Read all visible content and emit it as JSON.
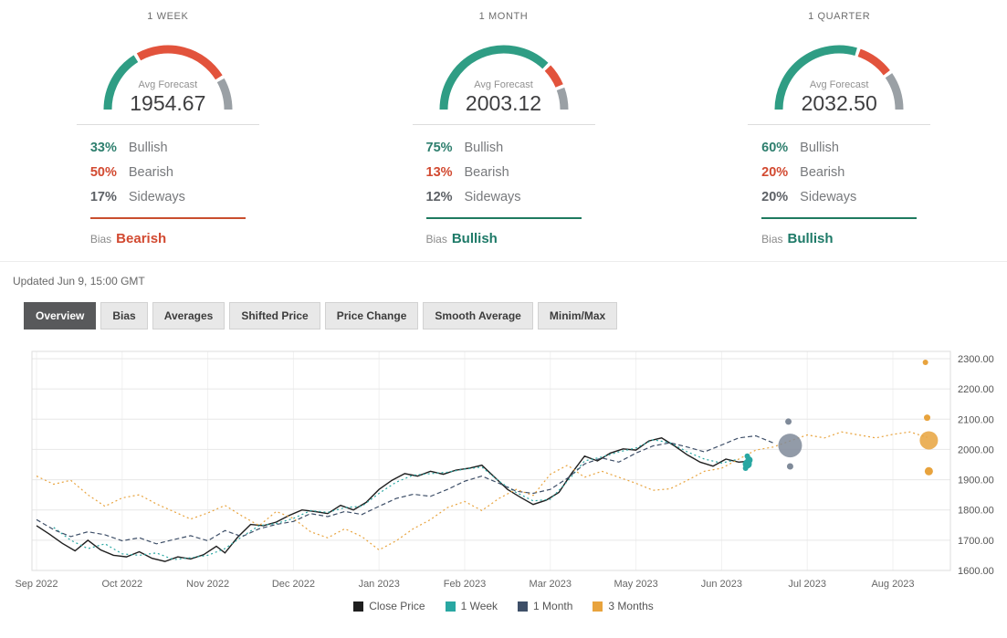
{
  "panels": [
    {
      "period": "1 WEEK",
      "avg_label": "Avg Forecast",
      "avg_value": "1954.67",
      "gauge": {
        "bullish": 33,
        "bearish": 50,
        "sideways": 17
      },
      "rows": [
        {
          "pct": "33%",
          "label": "Bullish"
        },
        {
          "pct": "50%",
          "label": "Bearish"
        },
        {
          "pct": "17%",
          "label": "Sideways"
        }
      ],
      "bias_label": "Bias",
      "bias": "Bearish",
      "bias_type": "bearish"
    },
    {
      "period": "1 MONTH",
      "avg_label": "Avg Forecast",
      "avg_value": "2003.12",
      "gauge": {
        "bullish": 75,
        "bearish": 13,
        "sideways": 12
      },
      "rows": [
        {
          "pct": "75%",
          "label": "Bullish"
        },
        {
          "pct": "13%",
          "label": "Bearish"
        },
        {
          "pct": "12%",
          "label": "Sideways"
        }
      ],
      "bias_label": "Bias",
      "bias": "Bullish",
      "bias_type": "bullish"
    },
    {
      "period": "1 QUARTER",
      "avg_label": "Avg Forecast",
      "avg_value": "2032.50",
      "gauge": {
        "bullish": 60,
        "bearish": 20,
        "sideways": 20
      },
      "rows": [
        {
          "pct": "60%",
          "label": "Bullish"
        },
        {
          "pct": "20%",
          "label": "Bearish"
        },
        {
          "pct": "20%",
          "label": "Sideways"
        }
      ],
      "bias_label": "Bias",
      "bias": "Bullish",
      "bias_type": "bullish"
    }
  ],
  "colors": {
    "gauge_bullish": "#2f9d84",
    "gauge_bearish": "#e2533c",
    "gauge_sideways": "#9aa0a5",
    "bias_bullish": "#1e7a68",
    "bias_bearish": "#d24a31"
  },
  "updated": "Updated Jun 9, 15:00 GMT",
  "tabs": {
    "items": [
      {
        "label": "Overview",
        "active": true
      },
      {
        "label": "Bias",
        "active": false
      },
      {
        "label": "Averages",
        "active": false
      },
      {
        "label": "Shifted Price",
        "active": false
      },
      {
        "label": "Price Change",
        "active": false
      },
      {
        "label": "Smooth Average",
        "active": false
      },
      {
        "label": "Minim/Max",
        "active": false
      }
    ]
  },
  "chart_data": {
    "type": "line",
    "title": "",
    "x_labels": [
      "Sep 2022",
      "Oct 2022",
      "Nov 2022",
      "Dec 2022",
      "Jan 2023",
      "Feb 2023",
      "Mar 2023",
      "May 2023",
      "Jun 2023",
      "Jul 2023",
      "Aug 2023"
    ],
    "ylim": [
      1600,
      2300
    ],
    "y_ticks": [
      "1600.00",
      "1700.00",
      "1800.00",
      "1900.00",
      "2000.00",
      "2100.00",
      "2200.00",
      "2300.00"
    ],
    "grid": true,
    "legend_position": "bottom",
    "series": [
      {
        "name": "Close Price",
        "color": "#1f1f1f",
        "dash": "",
        "points": [
          [
            0,
            1748
          ],
          [
            0.15,
            1720
          ],
          [
            0.3,
            1690
          ],
          [
            0.45,
            1665
          ],
          [
            0.6,
            1700
          ],
          [
            0.75,
            1668
          ],
          [
            0.9,
            1650
          ],
          [
            1.05,
            1645
          ],
          [
            1.2,
            1662
          ],
          [
            1.35,
            1640
          ],
          [
            1.5,
            1630
          ],
          [
            1.65,
            1645
          ],
          [
            1.8,
            1638
          ],
          [
            1.95,
            1652
          ],
          [
            2.1,
            1680
          ],
          [
            2.2,
            1658
          ],
          [
            2.35,
            1710
          ],
          [
            2.5,
            1752
          ],
          [
            2.65,
            1748
          ],
          [
            2.8,
            1760
          ],
          [
            2.95,
            1782
          ],
          [
            3.1,
            1800
          ],
          [
            3.25,
            1795
          ],
          [
            3.4,
            1788
          ],
          [
            3.55,
            1815
          ],
          [
            3.7,
            1800
          ],
          [
            3.85,
            1825
          ],
          [
            4.0,
            1868
          ],
          [
            4.15,
            1898
          ],
          [
            4.3,
            1920
          ],
          [
            4.45,
            1912
          ],
          [
            4.6,
            1928
          ],
          [
            4.75,
            1918
          ],
          [
            4.9,
            1932
          ],
          [
            5.05,
            1938
          ],
          [
            5.2,
            1948
          ],
          [
            5.35,
            1908
          ],
          [
            5.5,
            1868
          ],
          [
            5.65,
            1842
          ],
          [
            5.8,
            1818
          ],
          [
            5.95,
            1832
          ],
          [
            6.1,
            1858
          ],
          [
            6.25,
            1922
          ],
          [
            6.4,
            1978
          ],
          [
            6.55,
            1962
          ],
          [
            6.7,
            1988
          ],
          [
            6.85,
            2002
          ],
          [
            7.0,
            1998
          ],
          [
            7.15,
            2028
          ],
          [
            7.3,
            2038
          ],
          [
            7.45,
            2012
          ],
          [
            7.6,
            1982
          ],
          [
            7.75,
            1958
          ],
          [
            7.9,
            1945
          ],
          [
            8.05,
            1968
          ],
          [
            8.2,
            1958
          ],
          [
            8.35,
            1962
          ]
        ]
      },
      {
        "name": "1 Week",
        "color": "#29a7a2",
        "dash": "2 3",
        "points": [
          [
            0.2,
            1742
          ],
          [
            0.4,
            1700
          ],
          [
            0.6,
            1672
          ],
          [
            0.8,
            1688
          ],
          [
            1.0,
            1655
          ],
          [
            1.2,
            1650
          ],
          [
            1.4,
            1658
          ],
          [
            1.6,
            1636
          ],
          [
            1.8,
            1642
          ],
          [
            2.0,
            1650
          ],
          [
            2.2,
            1672
          ],
          [
            2.4,
            1712
          ],
          [
            2.6,
            1748
          ],
          [
            2.8,
            1755
          ],
          [
            3.0,
            1772
          ],
          [
            3.2,
            1798
          ],
          [
            3.4,
            1792
          ],
          [
            3.6,
            1808
          ],
          [
            3.8,
            1812
          ],
          [
            4.0,
            1855
          ],
          [
            4.2,
            1892
          ],
          [
            4.4,
            1915
          ],
          [
            4.6,
            1920
          ],
          [
            4.8,
            1925
          ],
          [
            5.0,
            1935
          ],
          [
            5.2,
            1942
          ],
          [
            5.4,
            1895
          ],
          [
            5.6,
            1858
          ],
          [
            5.8,
            1830
          ],
          [
            6.0,
            1835
          ],
          [
            6.2,
            1895
          ],
          [
            6.4,
            1962
          ],
          [
            6.6,
            1975
          ],
          [
            6.8,
            1992
          ],
          [
            7.0,
            2005
          ],
          [
            7.2,
            2032
          ],
          [
            7.4,
            2022
          ],
          [
            7.6,
            1992
          ],
          [
            7.8,
            1968
          ],
          [
            8.0,
            1955
          ],
          [
            8.2,
            1968
          ]
        ]
      },
      {
        "name": "1 Month",
        "color": "#3e4f68",
        "dash": "5 3",
        "points": [
          [
            0,
            1768
          ],
          [
            0.2,
            1735
          ],
          [
            0.4,
            1712
          ],
          [
            0.6,
            1728
          ],
          [
            0.8,
            1718
          ],
          [
            1.0,
            1698
          ],
          [
            1.2,
            1708
          ],
          [
            1.4,
            1688
          ],
          [
            1.6,
            1702
          ],
          [
            1.8,
            1715
          ],
          [
            2.0,
            1698
          ],
          [
            2.2,
            1732
          ],
          [
            2.4,
            1712
          ],
          [
            2.6,
            1738
          ],
          [
            2.8,
            1752
          ],
          [
            3.0,
            1762
          ],
          [
            3.2,
            1788
          ],
          [
            3.4,
            1778
          ],
          [
            3.6,
            1795
          ],
          [
            3.8,
            1785
          ],
          [
            4.0,
            1812
          ],
          [
            4.2,
            1838
          ],
          [
            4.4,
            1852
          ],
          [
            4.6,
            1845
          ],
          [
            4.8,
            1868
          ],
          [
            5.0,
            1895
          ],
          [
            5.2,
            1912
          ],
          [
            5.4,
            1888
          ],
          [
            5.6,
            1862
          ],
          [
            5.8,
            1855
          ],
          [
            6.0,
            1868
          ],
          [
            6.2,
            1905
          ],
          [
            6.4,
            1952
          ],
          [
            6.6,
            1972
          ],
          [
            6.8,
            1958
          ],
          [
            7.0,
            1988
          ],
          [
            7.2,
            2012
          ],
          [
            7.4,
            2022
          ],
          [
            7.6,
            2008
          ],
          [
            7.8,
            1992
          ],
          [
            8.0,
            2015
          ],
          [
            8.2,
            2038
          ],
          [
            8.4,
            2045
          ],
          [
            8.6,
            2022
          ]
        ]
      },
      {
        "name": "3 Months",
        "color": "#e8a33d",
        "dash": "2 3",
        "points": [
          [
            0,
            1912
          ],
          [
            0.2,
            1885
          ],
          [
            0.4,
            1898
          ],
          [
            0.6,
            1850
          ],
          [
            0.8,
            1812
          ],
          [
            1.0,
            1840
          ],
          [
            1.2,
            1850
          ],
          [
            1.4,
            1820
          ],
          [
            1.6,
            1795
          ],
          [
            1.8,
            1770
          ],
          [
            2.0,
            1790
          ],
          [
            2.2,
            1815
          ],
          [
            2.4,
            1780
          ],
          [
            2.6,
            1748
          ],
          [
            2.8,
            1795
          ],
          [
            3.0,
            1772
          ],
          [
            3.2,
            1728
          ],
          [
            3.4,
            1708
          ],
          [
            3.6,
            1738
          ],
          [
            3.8,
            1712
          ],
          [
            4.0,
            1668
          ],
          [
            4.2,
            1698
          ],
          [
            4.4,
            1738
          ],
          [
            4.6,
            1768
          ],
          [
            4.8,
            1808
          ],
          [
            5.0,
            1828
          ],
          [
            5.2,
            1798
          ],
          [
            5.4,
            1838
          ],
          [
            5.6,
            1868
          ],
          [
            5.8,
            1848
          ],
          [
            6.0,
            1918
          ],
          [
            6.2,
            1948
          ],
          [
            6.4,
            1908
          ],
          [
            6.6,
            1928
          ],
          [
            6.8,
            1908
          ],
          [
            7.0,
            1888
          ],
          [
            7.2,
            1865
          ],
          [
            7.4,
            1870
          ],
          [
            7.6,
            1898
          ],
          [
            7.8,
            1928
          ],
          [
            8.0,
            1938
          ],
          [
            8.2,
            1968
          ],
          [
            8.4,
            1998
          ],
          [
            8.6,
            2008
          ],
          [
            8.8,
            2028
          ],
          [
            9.0,
            2048
          ],
          [
            9.2,
            2038
          ],
          [
            9.4,
            2058
          ],
          [
            9.6,
            2048
          ],
          [
            9.8,
            2038
          ],
          [
            10.0,
            2050
          ],
          [
            10.2,
            2058
          ],
          [
            10.4,
            2040
          ]
        ]
      }
    ],
    "scatter": [
      {
        "name": "1 Week forecasts",
        "color": "#29a7a2",
        "points": [
          [
            8.28,
            1938,
            3
          ],
          [
            8.3,
            1952,
            5
          ],
          [
            8.32,
            1965,
            4
          ],
          [
            8.3,
            1978,
            3
          ]
        ]
      },
      {
        "name": "1 Month forecasts",
        "color": "#7f8a99",
        "points": [
          [
            8.8,
            2013,
            13
          ],
          [
            8.78,
            2092,
            3.5
          ],
          [
            8.8,
            1944,
            3.5
          ]
        ]
      },
      {
        "name": "3 Months forecasts",
        "color": "#e8a33d",
        "points": [
          [
            10.42,
            2030,
            10
          ],
          [
            10.38,
            2288,
            3
          ],
          [
            10.4,
            2105,
            3.5
          ],
          [
            10.42,
            1928,
            4.5
          ]
        ]
      }
    ],
    "legend": [
      {
        "label": "Close Price",
        "color": "#1f1f1f"
      },
      {
        "label": "1 Week",
        "color": "#29a7a2"
      },
      {
        "label": "1 Month",
        "color": "#3e4f68"
      },
      {
        "label": "3 Months",
        "color": "#e8a33d"
      }
    ]
  }
}
